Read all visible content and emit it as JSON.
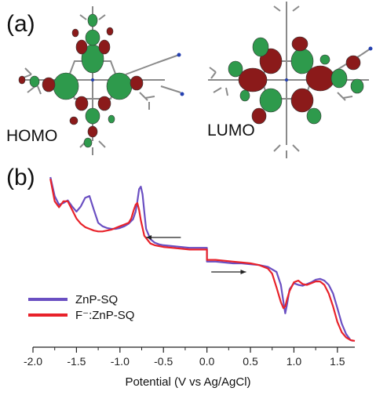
{
  "panel_a_label": "(a)",
  "panel_b_label": "(b)",
  "homo_label": "HOMO",
  "lumo_label": "LUMO",
  "chart_data": {
    "type": "line",
    "xlabel": "Potential (V vs Ag/AgCl)",
    "ylabel": "",
    "xlim": [
      -2.0,
      1.7
    ],
    "x_ticks": [
      -2.0,
      -1.5,
      -1.0,
      -0.5,
      0.0,
      0.5,
      1.0,
      1.5
    ],
    "x_tick_labels": [
      "-2.0",
      "-1.5",
      "-1.0",
      "-0.5",
      "0.0",
      "0.5",
      "1.0",
      "1.5"
    ],
    "ylim": [
      -1.0,
      1.0
    ],
    "grid": false,
    "legend": "bottom-left",
    "series": [
      {
        "name": "ZnP-SQ",
        "color": "#6a4fc2",
        "x": [
          -1.8,
          -1.75,
          -1.7,
          -1.65,
          -1.6,
          -1.55,
          -1.5,
          -1.45,
          -1.4,
          -1.35,
          -1.3,
          -1.25,
          -1.2,
          -1.15,
          -1.1,
          -1.05,
          -1.0,
          -0.95,
          -0.9,
          -0.85,
          -0.82,
          -0.8,
          -0.78,
          -0.76,
          -0.74,
          -0.72,
          -0.7,
          -0.65,
          -0.6,
          -0.55,
          -0.5,
          -0.4,
          -0.3,
          -0.2,
          -0.1,
          0.0,
          0.0,
          0.1,
          0.2,
          0.3,
          0.4,
          0.5,
          0.6,
          0.7,
          0.8,
          0.85,
          0.88,
          0.9,
          0.92,
          0.95,
          1.0,
          1.05,
          1.1,
          1.15,
          1.2,
          1.25,
          1.3,
          1.35,
          1.4,
          1.45,
          1.5,
          1.55,
          1.6,
          1.65,
          1.68
        ],
        "y": [
          0.9,
          0.68,
          0.58,
          0.6,
          0.63,
          0.56,
          0.5,
          0.56,
          0.66,
          0.68,
          0.52,
          0.37,
          0.33,
          0.31,
          0.3,
          0.3,
          0.31,
          0.33,
          0.36,
          0.41,
          0.5,
          0.62,
          0.76,
          0.79,
          0.7,
          0.5,
          0.3,
          0.18,
          0.14,
          0.12,
          0.11,
          0.1,
          0.09,
          0.08,
          0.08,
          0.08,
          -0.08,
          -0.08,
          -0.09,
          -0.1,
          -0.1,
          -0.11,
          -0.12,
          -0.14,
          -0.2,
          -0.35,
          -0.55,
          -0.68,
          -0.58,
          -0.4,
          -0.33,
          -0.35,
          -0.36,
          -0.34,
          -0.32,
          -0.29,
          -0.28,
          -0.3,
          -0.35,
          -0.45,
          -0.62,
          -0.8,
          -0.92,
          -0.99,
          -1.0
        ]
      },
      {
        "name": "F⁻:ZnP-SQ",
        "color": "#e8222a",
        "x": [
          -1.8,
          -1.75,
          -1.7,
          -1.65,
          -1.6,
          -1.55,
          -1.5,
          -1.45,
          -1.4,
          -1.35,
          -1.3,
          -1.25,
          -1.2,
          -1.15,
          -1.1,
          -1.05,
          -1.0,
          -0.95,
          -0.9,
          -0.87,
          -0.84,
          -0.82,
          -0.8,
          -0.78,
          -0.76,
          -0.72,
          -0.65,
          -0.6,
          -0.55,
          -0.5,
          -0.4,
          -0.3,
          -0.2,
          -0.1,
          0.0,
          0.0,
          0.1,
          0.2,
          0.3,
          0.4,
          0.5,
          0.6,
          0.7,
          0.75,
          0.8,
          0.85,
          0.88,
          0.9,
          0.92,
          0.95,
          1.0,
          1.05,
          1.1,
          1.15,
          1.2,
          1.25,
          1.3,
          1.35,
          1.4,
          1.45,
          1.5,
          1.55,
          1.6,
          1.65,
          1.7
        ],
        "y": [
          0.88,
          0.62,
          0.55,
          0.62,
          0.62,
          0.52,
          0.42,
          0.36,
          0.32,
          0.3,
          0.28,
          0.27,
          0.27,
          0.28,
          0.29,
          0.31,
          0.33,
          0.35,
          0.37,
          0.42,
          0.52,
          0.58,
          0.6,
          0.52,
          0.4,
          0.22,
          0.13,
          0.11,
          0.1,
          0.09,
          0.08,
          0.07,
          0.06,
          0.06,
          0.06,
          -0.06,
          -0.06,
          -0.07,
          -0.08,
          -0.09,
          -0.1,
          -0.12,
          -0.16,
          -0.22,
          -0.38,
          -0.55,
          -0.62,
          -0.6,
          -0.52,
          -0.42,
          -0.32,
          -0.3,
          -0.34,
          -0.35,
          -0.33,
          -0.31,
          -0.31,
          -0.35,
          -0.45,
          -0.6,
          -0.78,
          -0.9,
          -0.96,
          -0.99,
          -1.0
        ]
      }
    ],
    "arrows": [
      {
        "from": [
          -0.3,
          0.2
        ],
        "to": [
          -0.7,
          0.2
        ]
      },
      {
        "from": [
          0.05,
          -0.2
        ],
        "to": [
          0.45,
          -0.2
        ]
      }
    ]
  }
}
